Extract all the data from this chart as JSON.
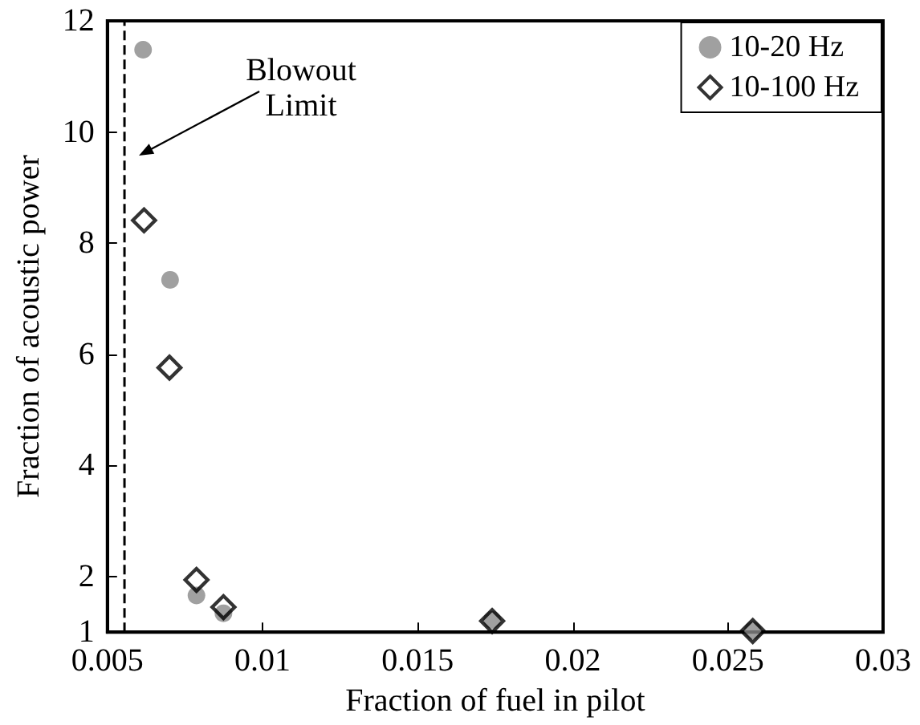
{
  "chart_data": {
    "type": "scatter",
    "xlabel": "Fraction of fuel in pilot",
    "ylabel": "Fraction of acoustic power",
    "xlim": [
      0.005,
      0.03
    ],
    "xticks": [
      0.005,
      0.01,
      0.015,
      0.02,
      0.025,
      0.03
    ],
    "ylim": [
      1,
      12
    ],
    "yticks": [
      1,
      2,
      4,
      6,
      8,
      10,
      12
    ],
    "series": [
      {
        "name": "10-20 Hz",
        "color": "#888888",
        "marker": "circle",
        "x": [
          0.00615,
          0.00702,
          0.00787,
          0.00874,
          0.0174,
          0.0258
        ],
        "values": [
          11.48,
          7.34,
          1.66,
          1.34,
          1.22,
          1.03
        ]
      },
      {
        "name": "10-100 Hz",
        "color": "#000000",
        "marker": "diamond",
        "x": [
          0.00618,
          0.007,
          0.00787,
          0.00874,
          0.0174,
          0.0258
        ],
        "values": [
          8.41,
          5.76,
          1.94,
          1.45,
          1.2,
          1.02
        ]
      }
    ],
    "ref_lines": [
      {
        "axis": "x",
        "value": 0.00555,
        "line_style": "dashed",
        "color": "#000000"
      }
    ],
    "annotations": [
      "Blowout\nLimit"
    ],
    "legend": "top right",
    "grid": false
  }
}
